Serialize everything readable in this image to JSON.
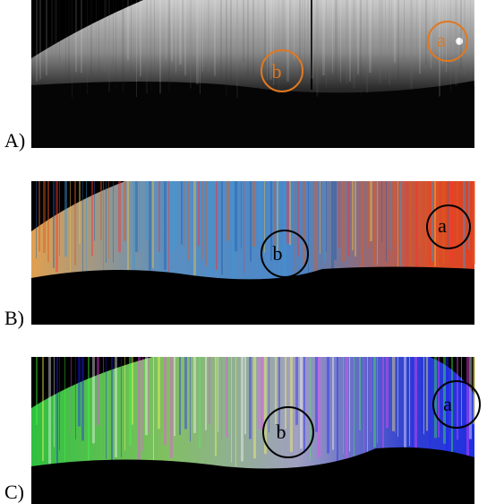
{
  "panels": [
    {
      "label": "A)",
      "markers": [
        {
          "label": "a"
        },
        {
          "label": "b"
        }
      ]
    },
    {
      "label": "B)",
      "markers": [
        {
          "label": "a"
        },
        {
          "label": "b"
        }
      ]
    },
    {
      "label": "C)",
      "markers": [
        {
          "label": "a"
        },
        {
          "label": "b"
        }
      ]
    }
  ]
}
